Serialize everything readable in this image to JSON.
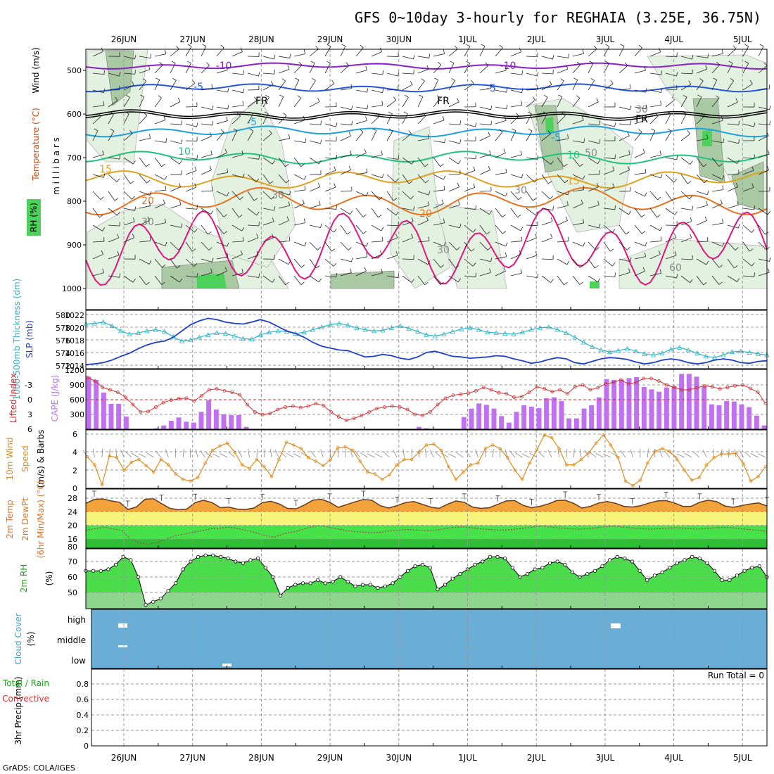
{
  "title": "GFS 0~10day 3-hourly for REGHAIA (3.25E, 36.75N)",
  "credit": "GrADS: COLA/IGES",
  "dates": [
    "26JUN",
    "27JUN",
    "28JUN",
    "29JUN",
    "30JUN",
    "1JUL",
    "2JUL",
    "3JUL",
    "4JUL",
    "5JUL"
  ],
  "colors": {
    "rh_light": "#e3f2e0",
    "rh_mid": "#a9c9a3",
    "rh_dark": "#6e8f69",
    "rh_green": "#4cd15a",
    "temp_magenta": "#e0157f",
    "temp_orange_dark": "#e8721d",
    "temp_orange": "#e0a020",
    "temp_green": "#20c080",
    "temp_lightblue": "#1ea0e0",
    "temp_blue": "#2855d8",
    "temp_purple": "#8a1ec8",
    "slp": "#1f3fd0",
    "thickness": "#2cb5c8",
    "lifted": "#d03030",
    "cape": "#c070f0",
    "wind": "#e08a1a",
    "temp2m": "#f2a33a",
    "dewpt_band": "#f6f47a",
    "dewpt_green": "#47e24a",
    "rh2m": "#1ec41e",
    "cloud": "#6aaed8",
    "cloud_patch": "#ffffff"
  },
  "panels": {
    "upper": {
      "ylabel_wind": "Wind (m/s)",
      "ylabel_temp": "Temperature (°C)",
      "ylabel_rh": "RH (%)",
      "ylabel_mb": "m i l l i b a r s",
      "yticks": [
        "500",
        "600",
        "700",
        "800",
        "900",
        "1000"
      ],
      "contour_labels": [
        "-10",
        "-10",
        "-5",
        "-5",
        "FR",
        "FR",
        "FR",
        "-5",
        "-5",
        "10",
        "10",
        "15",
        "15",
        "20",
        "20",
        "30",
        "30",
        "30",
        "30",
        "30",
        "50",
        "60"
      ]
    },
    "slp": {
      "ylabel_thk": "1000-500mb Thickness (dm)",
      "ylabel_slp": "SLP (mb)",
      "left_ticks": [
        "580",
        "578",
        "576",
        "574",
        "572"
      ],
      "right_ticks": [
        "1022",
        "1020",
        "1018",
        "1016",
        "1014"
      ]
    },
    "li": {
      "ylabel_li": "Lifted Index",
      "ylabel_cape": "CAPE (J/kg)",
      "left_ticks": [
        "-3",
        "0",
        "3",
        "6"
      ],
      "right_ticks": [
        "1200",
        "900",
        "600",
        "300"
      ]
    },
    "wind": {
      "ylabel_a": "10m Wind",
      "ylabel_b": "Speed",
      "ylabel_c": "(m/s) & Barbs",
      "ticks": [
        "0",
        "2",
        "4",
        "6"
      ]
    },
    "temp": {
      "ylabel_a": "2m Temp",
      "ylabel_b": "2m DewPt",
      "ylabel_c": "(6hr Min/Max) (°C)",
      "ticks": [
        "28",
        "24",
        "20",
        "16",
        "80"
      ]
    },
    "rh": {
      "ylabel_a": "2m RH",
      "ylabel_b": "(%)",
      "ticks": [
        "70",
        "60",
        "50"
      ]
    },
    "cloud": {
      "ylabel_a": "Cloud Cover",
      "ylabel_b": "(%)",
      "levels": [
        "high",
        "middle",
        "low"
      ]
    },
    "precip": {
      "ylabel_a": "Total / Rain",
      "ylabel_b": "Convective",
      "ylabel_c": "3hr Precip (mm)",
      "ticks": [
        "0.8",
        "0.6",
        "0.4",
        "0.2",
        "0"
      ],
      "run_total": "Run Total = 0"
    }
  },
  "chart_data": [
    {
      "type": "heatmap",
      "title": "Upper-air time-height: RH, Temperature, Wind",
      "ylabel": "millibars",
      "ylim": [
        1000,
        460
      ],
      "temperature_contours_c": [
        -10,
        -5,
        0,
        5,
        10,
        15,
        20,
        25
      ],
      "rh_shading_percent": [
        30,
        50,
        60,
        70,
        90
      ]
    },
    {
      "type": "line",
      "series": [
        {
          "name": "1000-500mb Thickness (dm)",
          "values": [
            578.5,
            578.6,
            578.8,
            578.2,
            577.4,
            576.9,
            577.1,
            577.4,
            577.6,
            577.3,
            576.5,
            575.8,
            576.0,
            576.4,
            576.8,
            577.1,
            577.0,
            576.6,
            576.2,
            576.1,
            576.8,
            577.2,
            577.4,
            577.3,
            577.0,
            577.2,
            577.6,
            578.0,
            578.4,
            578.6,
            578.3,
            577.9,
            577.6,
            577.4,
            577.5,
            577.9,
            578.2,
            577.8,
            577.3,
            576.8,
            576.6,
            576.9,
            577.3,
            577.7,
            577.9,
            577.6,
            577.2,
            577.1,
            577.0,
            576.9,
            577.2,
            577.6,
            577.9,
            578.0,
            577.6,
            577.1,
            576.4,
            575.6,
            574.9,
            574.4,
            574.1,
            574.3,
            574.6,
            574.2,
            573.8,
            573.6,
            573.9,
            574.5,
            574.8,
            574.4,
            573.9,
            573.4,
            573.2,
            573.6,
            574.1,
            574.2,
            574.0,
            573.8,
            573.6
          ]
        },
        {
          "name": "SLP (mb)",
          "values": [
            1014.3,
            1014.4,
            1014.6,
            1015.0,
            1015.6,
            1016.1,
            1016.8,
            1017.4,
            1017.8,
            1018.0,
            1018.6,
            1019.6,
            1020.6,
            1021.2,
            1021.6,
            1021.4,
            1021.0,
            1020.8,
            1020.7,
            1021.0,
            1021.4,
            1021.0,
            1020.3,
            1019.6,
            1019.2,
            1018.6,
            1017.8,
            1017.2,
            1016.9,
            1016.6,
            1016.5,
            1016.0,
            1015.5,
            1015.6,
            1015.9,
            1015.7,
            1015.3,
            1015.1,
            1015.5,
            1016.2,
            1016.4,
            1016.0,
            1015.6,
            1015.5,
            1015.3,
            1015.4,
            1015.5,
            1015.7,
            1015.6,
            1015.2,
            1014.9,
            1014.5,
            1014.7,
            1015.1,
            1015.4,
            1015.2,
            1014.6,
            1014.4,
            1014.8,
            1015.2,
            1015.4,
            1015.3,
            1015.1,
            1014.7,
            1014.4,
            1014.6,
            1015.0,
            1015.2,
            1015.0,
            1014.6,
            1014.4,
            1014.6,
            1015.0,
            1015.2,
            1015.0,
            1014.6,
            1014.5,
            1014.8,
            1014.9
          ]
        }
      ]
    },
    {
      "type": "bar",
      "title": "Lifted Index / CAPE",
      "series": [
        {
          "name": "CAPE (J/kg)",
          "values": [
            1120,
            1050,
            780,
            540,
            540,
            270,
            0,
            0,
            0,
            20,
            80,
            180,
            250,
            160,
            140,
            370,
            620,
            420,
            320,
            300,
            300,
            50,
            0,
            0,
            0,
            0,
            0,
            0,
            0,
            0,
            0,
            0,
            0,
            0,
            0,
            0,
            0,
            0,
            0,
            0,
            0,
            0,
            0,
            0,
            50,
            20,
            0,
            0,
            0,
            0,
            260,
            440,
            550,
            520,
            440,
            280,
            140,
            370,
            510,
            480,
            450,
            660,
            680,
            600,
            230,
            230,
            440,
            510,
            680,
            1070,
            1050,
            1060,
            1090,
            1110,
            900,
            850,
            800,
            890,
            920,
            1180,
            1180,
            1120,
            920,
            530,
            510,
            600,
            590,
            530,
            470,
            290,
            80
          ]
        },
        {
          "name": "Lifted Index",
          "values": [
            -4.5,
            -3.8,
            -2.5,
            -2.0,
            -1.5,
            -0.5,
            1.0,
            2.5,
            2.4,
            1.5,
            0.6,
            0.1,
            -0.2,
            -0.3,
            0.3,
            -0.8,
            -2.0,
            -2.2,
            -1.8,
            -1.5,
            -1.0,
            1.0,
            2.5,
            3.0,
            2.8,
            2.0,
            1.5,
            1.3,
            1.6,
            1.3,
            0.8,
            1.2,
            2.5,
            3.5,
            4.2,
            3.8,
            3.2,
            2.5,
            1.8,
            1.5,
            1.3,
            1.5,
            2.0,
            3.0,
            3.2,
            2.5,
            1.0,
            -0.3,
            -0.9,
            -1.1,
            -1.3,
            -1.8,
            -2.5,
            -2.0,
            -1.4,
            -1.2,
            -0.5,
            -0.6,
            -1.5,
            -2.6,
            -2.2,
            -1.6,
            -2.0,
            -1.2,
            -2.6,
            -3.0,
            -2.0,
            -2.4,
            -3.2,
            -3.5,
            -4.0,
            -3.2,
            -3.5,
            -4.3,
            -4.3,
            -3.8,
            -3.0,
            -2.5,
            -2.0,
            -2.0,
            -2.4,
            -2.8,
            -2.6,
            -2.2,
            -2.5,
            -2.8,
            -3.0,
            -2.3,
            -1.5,
            0.8
          ]
        }
      ]
    },
    {
      "type": "line",
      "title": "10m Wind Speed",
      "ylim": [
        0,
        6
      ],
      "series": [
        {
          "name": "Speed (m/s)",
          "values": [
            3.5,
            2.6,
            0.4,
            3.6,
            3.4,
            2.0,
            2.9,
            3.2,
            2.5,
            1.8,
            3.2,
            2.6,
            1.6,
            1.0,
            0.8,
            1.2,
            2.8,
            4.2,
            4.7,
            5.0,
            4.0,
            2.6,
            2.2,
            3.2,
            2.4,
            1.3,
            3.2,
            5.1,
            4.8,
            4.4,
            3.4,
            3.0,
            2.5,
            3.2,
            4.5,
            4.6,
            4.2,
            3.0,
            1.8,
            1.6,
            1.0,
            1.5,
            2.6,
            3.2,
            3.2,
            4.0,
            4.8,
            4.9,
            4.2,
            2.4,
            1.0,
            1.8,
            2.6,
            2.8,
            4.4,
            4.8,
            4.4,
            3.4,
            2.0,
            1.0,
            2.8,
            4.3,
            5.9,
            5.6,
            4.4,
            2.6,
            2.6,
            3.2,
            3.9,
            5.0,
            5.9,
            4.8,
            3.4,
            0.8,
            0.3,
            0.9,
            2.8,
            4.1,
            4.4,
            4.1,
            3.2,
            2.0,
            0.9,
            1.2,
            2.6,
            3.4,
            3.8,
            3.8,
            3.9,
            2.7,
            0.8,
            1.3,
            2.4
          ]
        }
      ]
    },
    {
      "type": "area",
      "title": "2m Temp / 2m DewPt",
      "series": [
        {
          "name": "2m Temp (°C)",
          "values": [
            26.5,
            27.6,
            27.8,
            27.2,
            26.8,
            24.7,
            25.4,
            27.6,
            27.9,
            26.4,
            25.0,
            24.6,
            24.8,
            26.7,
            27.4,
            26.7,
            25.2,
            25.4,
            24.8,
            24.7,
            25.1,
            26.7,
            27.1,
            26.3,
            25.0,
            24.9,
            26.0,
            27.4,
            27.7,
            26.8,
            25.3,
            26.1,
            26.9,
            27.6,
            27.4,
            25.8,
            25.1,
            25.8,
            26.7,
            27.0,
            26.2,
            25.4,
            25.0,
            26.2,
            27.2,
            26.8,
            25.4,
            25.0,
            25.2,
            26.2,
            27.2,
            27.3,
            25.9,
            25.2,
            25.6,
            26.3,
            27.3,
            27.4,
            26.5,
            25.1,
            25.6,
            26.6,
            27.0,
            26.5,
            25.6,
            25.4,
            25.8,
            26.6,
            27.2,
            27.3,
            26.6,
            25.6,
            25.6,
            26.8,
            27.4,
            27.0,
            25.7,
            25.3,
            25.8,
            26.3,
            26.6,
            25.7
          ]
        },
        {
          "name": "2m DewPt (°C)",
          "values": [
            18.5,
            19.0,
            19.5,
            19.0,
            18.5,
            16.0,
            14.8,
            14.5,
            15.0,
            16.0,
            17.0,
            17.5,
            18.0,
            18.5,
            19.0,
            19.2,
            19.5,
            19.0,
            18.5,
            17.8,
            17.0,
            16.5,
            17.5,
            18.0,
            18.6,
            19.5,
            20.0,
            19.5,
            19.0,
            18.5,
            18.2,
            18.0,
            17.8,
            18.0,
            18.4,
            18.6,
            18.8,
            18.6,
            18.4,
            18.6,
            19.0,
            19.4,
            19.6,
            19.3,
            19.0,
            18.8,
            18.6,
            18.7,
            18.9,
            19.2,
            19.6,
            19.8,
            19.5,
            19.2,
            19.0,
            18.9,
            19.0,
            19.3,
            19.6,
            19.8,
            19.5,
            19.2,
            19.0,
            18.9,
            19.0,
            19.2,
            19.3,
            19.1,
            18.9,
            19.0,
            19.2,
            19.4,
            19.3,
            19.0,
            18.8,
            18.6,
            18.2
          ]
        }
      ]
    },
    {
      "type": "area",
      "title": "2m RH",
      "ylim": [
        40,
        77
      ],
      "series": [
        {
          "name": "2m RH (%)",
          "values": [
            64,
            64,
            64,
            65,
            68,
            73,
            71,
            60,
            42,
            44,
            46,
            51,
            56,
            65,
            70,
            73,
            74,
            74,
            73,
            72,
            70,
            69,
            71,
            72,
            66,
            60,
            48,
            53,
            55,
            56,
            56,
            58,
            56,
            57,
            60,
            57,
            54,
            55,
            55,
            53,
            54,
            56,
            60,
            64,
            67,
            68,
            66,
            52,
            55,
            59,
            62,
            65,
            68,
            70,
            73,
            73,
            72,
            66,
            60,
            62,
            65,
            66,
            69,
            70,
            68,
            63,
            60,
            62,
            64,
            67,
            71,
            73,
            72,
            70,
            64,
            58,
            61,
            63,
            66,
            69,
            71,
            73,
            72,
            69,
            64,
            58,
            58,
            61,
            64,
            66,
            67,
            60
          ]
        }
      ]
    },
    {
      "type": "bar",
      "title": "3hr Precip (mm)",
      "ylim": [
        0,
        1
      ],
      "values": [
        0,
        0,
        0,
        0,
        0,
        0,
        0,
        0,
        0,
        0
      ]
    }
  ]
}
